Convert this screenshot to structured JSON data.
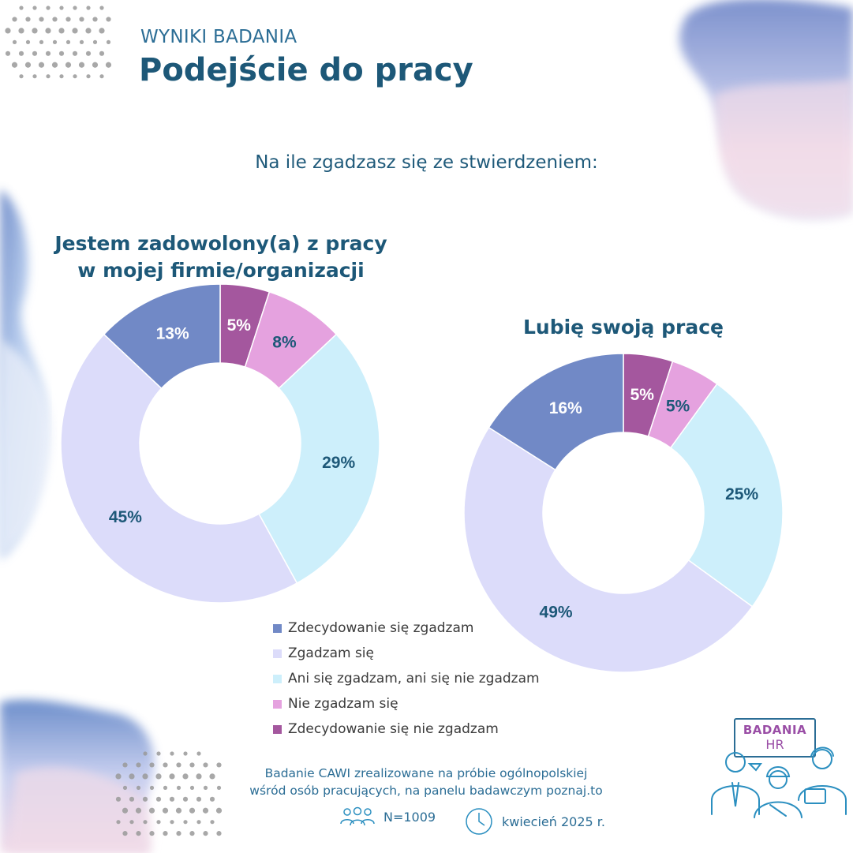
{
  "header": {
    "eyebrow": "WYNIKI BADANIA",
    "title": "Podejście do pracy"
  },
  "question": "Na ile zgadzasz się ze stwierdzeniem:",
  "colors": {
    "strongly_agree": "#7189c6",
    "agree": "#dcdcfa",
    "neutral": "#cdeffb",
    "disagree": "#e5a2df",
    "strongly_disagree": "#a4579e",
    "label_text": "#1d5878",
    "title_text": "#1d5878"
  },
  "chart_data": [
    {
      "type": "pie",
      "title_lines": [
        "Jestem zadowolony(a) z pracy",
        "w mojej firmie/organizacji"
      ],
      "categories": [
        "Zdecydowanie się zgadzam",
        "Zgadzam się",
        "Ani się zgadzam, ani się nie zgadzam",
        "Nie zgadzam się",
        "Zdecydowanie się nie zgadzam"
      ],
      "values": [
        13,
        45,
        29,
        8,
        5
      ],
      "labels": [
        "13%",
        "45%",
        "29%",
        "8%",
        "5%"
      ]
    },
    {
      "type": "pie",
      "title_lines": [
        "Lubię swoją pracę"
      ],
      "categories": [
        "Zdecydowanie się zgadzam",
        "Zgadzam się",
        "Ani się zgadzam, ani się nie zgadzam",
        "Nie zgadzam się",
        "Zdecydowanie się nie zgadzam"
      ],
      "values": [
        16,
        49,
        25,
        5,
        5
      ],
      "labels": [
        "16%",
        "49%",
        "25%",
        "5%",
        "5%"
      ]
    }
  ],
  "legend": [
    {
      "label": "Zdecydowanie się zgadzam",
      "color": "#7189c6"
    },
    {
      "label": "Zgadzam się",
      "color": "#dcdcfa"
    },
    {
      "label": "Ani się zgadzam, ani się nie zgadzam",
      "color": "#cdeffb"
    },
    {
      "label": "Nie zgadzam się",
      "color": "#e5a2df"
    },
    {
      "label": "Zdecydowanie się nie zgadzam",
      "color": "#a4579e"
    }
  ],
  "footnote": {
    "line1": "Badanie CAWI zrealizowane na próbie ogólnopolskiej",
    "line2": "wśród osób pracujących, na panelu badawczym poznaj.to"
  },
  "meta": {
    "sample_size": "N=1009",
    "date": "kwiecień 2025 r.",
    "people_icon": "people-icon",
    "clock_icon": "clock-icon"
  },
  "logo": {
    "line1": "BADANIA",
    "line2": "HR"
  }
}
